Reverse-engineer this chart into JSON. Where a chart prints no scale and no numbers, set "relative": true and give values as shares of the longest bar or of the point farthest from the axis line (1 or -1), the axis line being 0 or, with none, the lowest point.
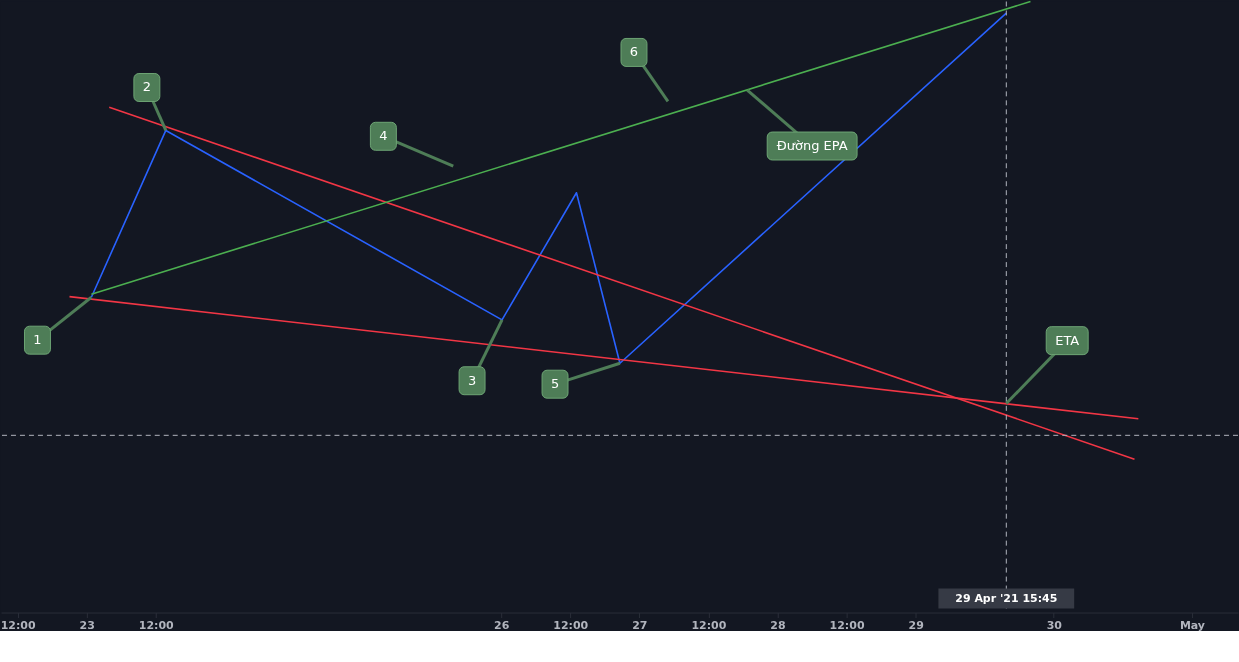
{
  "chart_data": {
    "type": "line",
    "relative": true,
    "legend": false,
    "grid": false,
    "tick_labels": "x",
    "line_style": "solid",
    "marker": "none",
    "xlim": [
      "2021-04-22T09:07",
      "2021-05-01T08:00"
    ],
    "xticks": [
      {
        "value": "2021-04-22T12:00",
        "label": "12:00"
      },
      {
        "value": "2021-04-23",
        "label": "23"
      },
      {
        "value": "2021-04-23T12:00",
        "label": "12:00"
      },
      {
        "value": "2021-04-26",
        "label": "26"
      },
      {
        "value": "2021-04-26T12:00",
        "label": "12:00"
      },
      {
        "value": "2021-04-27",
        "label": "27"
      },
      {
        "value": "2021-04-27T12:00",
        "label": "12:00"
      },
      {
        "value": "2021-04-28",
        "label": "28"
      },
      {
        "value": "2021-04-28T12:00",
        "label": "12:00"
      },
      {
        "value": "2021-04-29",
        "label": "29"
      },
      {
        "value": "2021-04-30",
        "label": "30"
      },
      {
        "value": "2021-05-01",
        "label": "May"
      }
    ],
    "series": [
      {
        "color": "#2962ff",
        "x": [
          "2021-04-23T00:49",
          "2021-04-23T13:45",
          "2021-04-26T00:09",
          "2021-04-26T13:05",
          "2021-04-26T20:38",
          "2021-04-29T15:45"
        ],
        "values": [
          0.516,
          0.789,
          0.479,
          0.687,
          0.408,
          0.981
        ]
      },
      {
        "color": "#f23645",
        "x": [
          "2021-04-23T03:55",
          "2021-04-30T14:01"
        ],
        "values": [
          0.827,
          0.251
        ]
      },
      {
        "color": "#f23645",
        "x": [
          "2021-04-22T21:01",
          "2021-04-30T14:41"
        ],
        "values": [
          0.517,
          0.317
        ]
      },
      {
        "color": "#4caf50",
        "x": [
          "2021-04-23T00:49",
          "2021-04-29T19:57"
        ],
        "values": [
          0.521,
          1.0
        ]
      }
    ],
    "ref_lines": [
      {
        "axis": "x",
        "value": "2021-04-29T15:45",
        "label": "29 Apr '21   15:45",
        "color": "#b2b5be",
        "line_style": "dashed"
      },
      {
        "axis": "y",
        "value": 0.29,
        "color": "#b2b5be",
        "line_style": "dashed"
      }
    ],
    "annotations": [
      {
        "text": "1",
        "x": "2021-04-23T00:49",
        "y": 0.516
      },
      {
        "text": "2",
        "x": "2021-04-23T13:45",
        "y": 0.789
      },
      {
        "text": "3",
        "x": "2021-04-26T00:09",
        "y": 0.479
      },
      "4",
      {
        "text": "5",
        "x": "2021-04-26T20:38",
        "y": 0.408
      },
      "6",
      {
        "text": "Đường EPA",
        "x": "2021-04-27T18:45",
        "y": 0.855
      },
      {
        "text": "ETA",
        "x": "2021-04-29T15:45",
        "y": 0.342
      }
    ]
  }
}
